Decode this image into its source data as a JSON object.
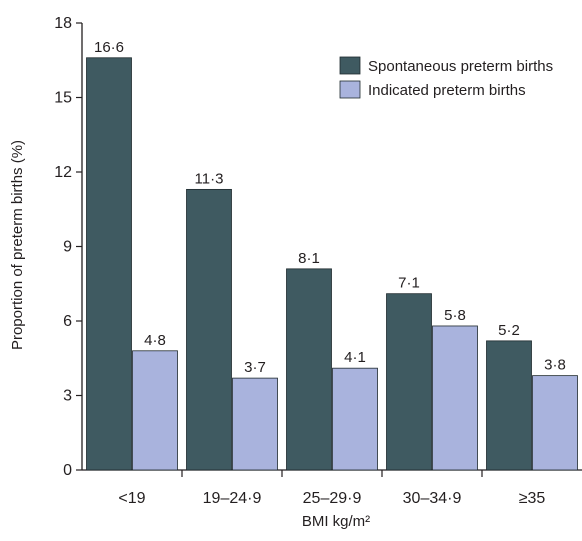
{
  "chart_data": {
    "type": "bar",
    "categories": [
      "<19",
      "19–24·9",
      "25–29·9",
      "30–34·9",
      "≥35"
    ],
    "series": [
      {
        "name": "Spontaneous preterm births",
        "values": [
          16.6,
          11.3,
          8.1,
          7.1,
          5.2
        ],
        "labels": [
          "16·6",
          "11·3",
          "8·1",
          "7·1",
          "5·2"
        ],
        "color": "#3f5a61"
      },
      {
        "name": "Indicated preterm births",
        "values": [
          4.8,
          3.7,
          4.1,
          5.8,
          3.8
        ],
        "labels": [
          "4·8",
          "3·7",
          "4·1",
          "5·8",
          "3·8"
        ],
        "color": "#a9b3dd"
      }
    ],
    "xlabel": "BMI kg/m²",
    "ylabel": "Proportion of preterm births (%)",
    "ylim": [
      0,
      18
    ],
    "yticks": [
      0,
      3,
      6,
      9,
      12,
      15,
      18
    ],
    "legend_position": "top-right",
    "grid": false
  }
}
